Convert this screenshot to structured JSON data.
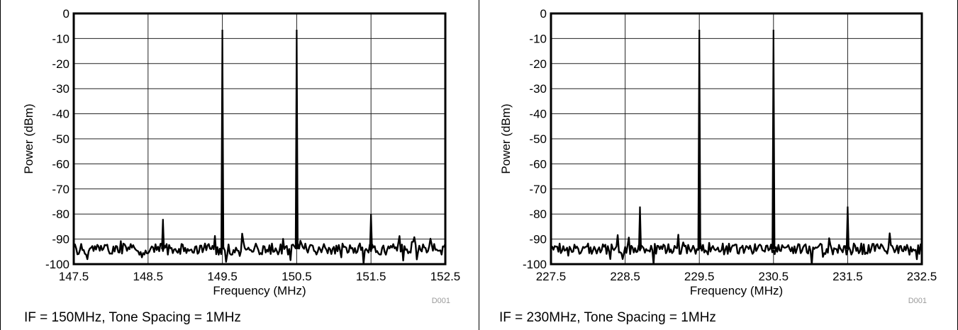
{
  "chart_data": [
    {
      "type": "line",
      "title": "",
      "xlabel": "Frequency (MHz)",
      "ylabel": "Power (dBm)",
      "xlim": [
        147.5,
        152.5
      ],
      "ylim": [
        -100,
        0
      ],
      "x_ticks": [
        "147.5",
        "148.5",
        "149.5",
        "150.5",
        "151.5",
        "152.5"
      ],
      "y_ticks": [
        "0",
        "-10",
        "-20",
        "-30",
        "-40",
        "-50",
        "-60",
        "-70",
        "-80",
        "-90",
        "-100"
      ],
      "grid": true,
      "noise_floor_dBm": -94,
      "series": [
        {
          "x": [
            147.5,
            148.7,
            149.5,
            150.5,
            151.5,
            152.5
          ],
          "y": [
            -94,
            -82,
            -6.5,
            -6.5,
            -80,
            -94
          ]
        }
      ],
      "figure_code": "D001",
      "caption": "IF = 150MHz, Tone Spacing = 1MHz"
    },
    {
      "type": "line",
      "title": "",
      "xlabel": "Frequency (MHz)",
      "ylabel": "Power (dBm)",
      "xlim": [
        227.5,
        232.5
      ],
      "ylim": [
        -100,
        0
      ],
      "x_ticks": [
        "227.5",
        "228.5",
        "229.5",
        "230.5",
        "231.5",
        "232.5"
      ],
      "y_ticks": [
        "0",
        "-10",
        "-20",
        "-30",
        "-40",
        "-50",
        "-60",
        "-70",
        "-80",
        "-90",
        "-100"
      ],
      "grid": true,
      "noise_floor_dBm": -94,
      "series": [
        {
          "x": [
            227.5,
            228.7,
            229.5,
            230.5,
            231.5,
            232.5
          ],
          "y": [
            -94,
            -77,
            -6.5,
            -6.5,
            -77,
            -94
          ]
        }
      ],
      "figure_code": "D001",
      "caption": "IF = 230MHz, Tone Spacing = 1MHz"
    }
  ]
}
